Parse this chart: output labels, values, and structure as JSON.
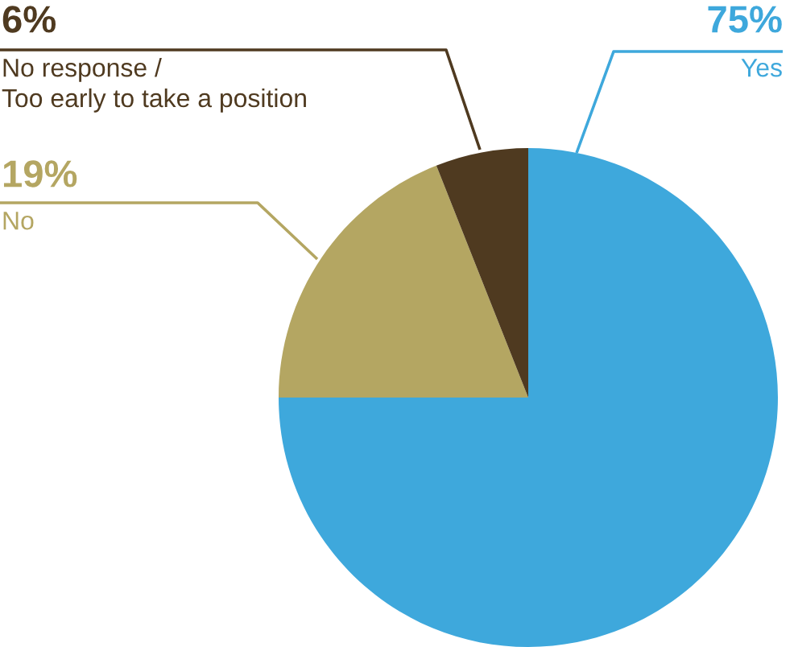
{
  "chart_data": {
    "type": "pie",
    "categories": [
      "Yes",
      "No",
      "No response /\nToo early to take a position"
    ],
    "values": [
      75,
      19,
      6
    ],
    "colors": [
      "#3ea8dc",
      "#b4a662",
      "#4f3a20"
    ],
    "value_labels": [
      "75%",
      "19%",
      "6%"
    ]
  }
}
